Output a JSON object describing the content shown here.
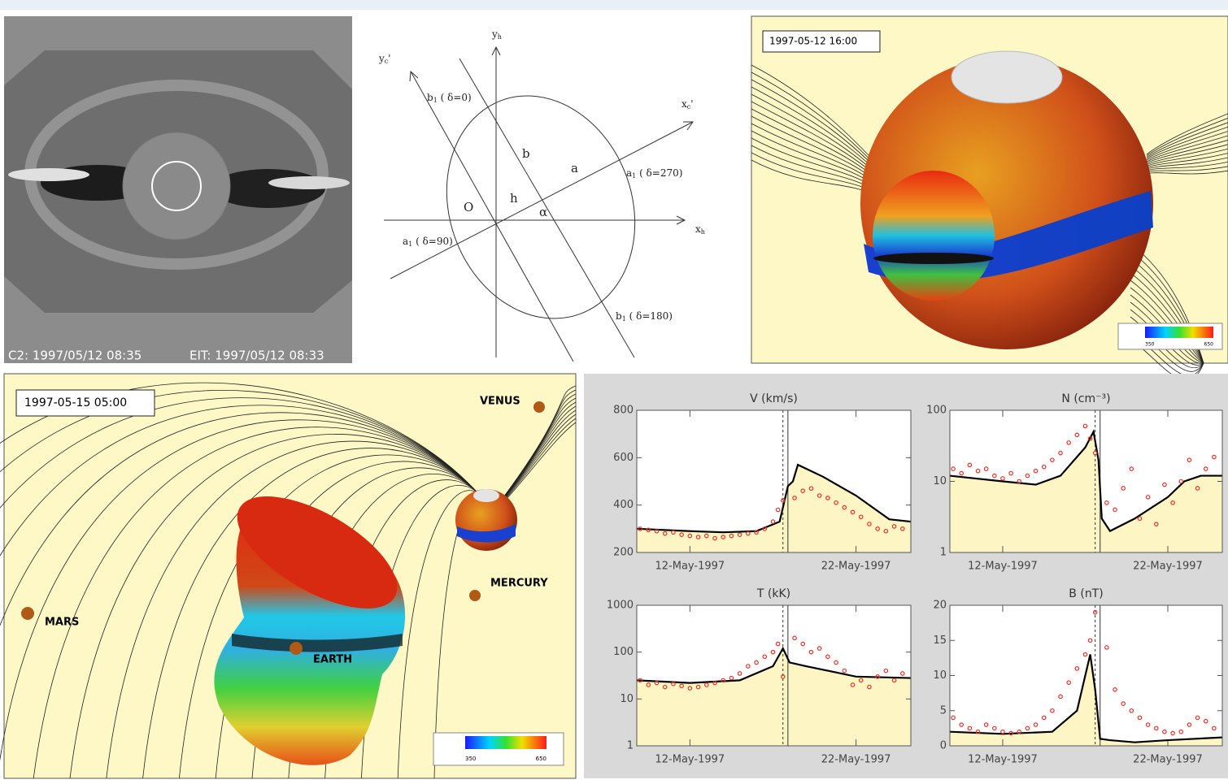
{
  "coronagraph": {
    "c2_label": "C2: 1997/05/12 08:35",
    "eit_label": "EIT: 1997/05/12 08:33"
  },
  "diagram": {
    "y_h": {
      "main": "y",
      "sub": "h",
      "rest": ""
    },
    "y_c": {
      "main": "y",
      "sub": "c",
      "rest": "'"
    },
    "x_c": {
      "main": "x",
      "sub": "c",
      "rest": "'"
    },
    "x_h": {
      "main": "x",
      "sub": "h",
      "rest": ""
    },
    "b1_0": {
      "main": "b",
      "sub": "1",
      "rest": " ( δ=0)"
    },
    "a1_270": {
      "main": "a",
      "sub": "1",
      "rest": " ( δ=270)"
    },
    "a1_90": {
      "main": "a",
      "sub": "1",
      "rest": " ( δ=90)"
    },
    "b1_180": {
      "main": "b",
      "sub": "1",
      "rest": " ( δ=180)"
    },
    "a": "a",
    "b": "b",
    "h": "h",
    "O": "O",
    "alpha": "α"
  },
  "sun_model": {
    "timestamp": "1997-05-12 16:00",
    "colorbar": {
      "min": 350,
      "max": 650
    }
  },
  "heliosphere": {
    "timestamp": "1997-05-15 05:00",
    "venus": "VENUS",
    "mercury": "MERCURY",
    "mars": "MARS",
    "earth": "EARTH",
    "colorbar": {
      "min": 350,
      "max": 650
    }
  },
  "chart_data": [
    {
      "type": "line",
      "title": "V (km/s)",
      "xlim": [
        8.8,
        25.3
      ],
      "xticks": [
        {
          "value": 12,
          "label": "12-May-1997"
        },
        {
          "value": 22,
          "label": "22-May-1997"
        }
      ],
      "ylim": [
        200,
        800
      ],
      "yticks": [
        200,
        400,
        600,
        800
      ],
      "vlines": [
        17.6,
        17.9
      ],
      "series": [
        {
          "type": "line",
          "color": "#000000",
          "x": [
            8.8,
            12,
            14,
            16,
            17.4,
            17.9,
            18.2,
            18.5,
            20,
            22,
            24,
            25.3
          ],
          "values": [
            300,
            290,
            285,
            290,
            330,
            480,
            500,
            570,
            520,
            440,
            340,
            330
          ]
        },
        {
          "type": "scatter",
          "color": "#e8302a",
          "x": [
            9,
            9.5,
            10,
            10.5,
            11,
            11.5,
            12,
            12.5,
            13,
            13.5,
            14,
            14.5,
            15,
            15.5,
            16,
            16.5,
            17,
            17.3,
            17.6,
            18.3,
            18.8,
            19.3,
            19.8,
            20.3,
            20.8,
            21.3,
            21.8,
            22.3,
            22.8,
            23.3,
            23.8,
            24.3,
            24.8
          ],
          "values": [
            300,
            295,
            290,
            280,
            285,
            275,
            270,
            265,
            270,
            260,
            265,
            270,
            275,
            280,
            285,
            300,
            330,
            380,
            420,
            430,
            460,
            470,
            440,
            430,
            410,
            390,
            370,
            350,
            320,
            300,
            290,
            310,
            300
          ]
        }
      ]
    },
    {
      "type": "line",
      "title": "N (cm⁻³)",
      "yscale": "log",
      "xlim": [
        8.8,
        25.3
      ],
      "xticks": [
        {
          "value": 12,
          "label": "12-May-1997"
        },
        {
          "value": 22,
          "label": "22-May-1997"
        }
      ],
      "ylim": [
        1,
        100
      ],
      "yticks": [
        1,
        10,
        100
      ],
      "vlines": [
        17.6,
        17.9
      ],
      "series": [
        {
          "type": "line",
          "color": "#000000",
          "x": [
            8.8,
            12,
            14,
            15.5,
            17,
            17.5,
            17.8,
            18,
            18.5,
            20,
            22,
            23,
            24,
            25.3
          ],
          "values": [
            12,
            10,
            9,
            12,
            30,
            50,
            20,
            3,
            2,
            3,
            6,
            10,
            12,
            12
          ]
        },
        {
          "type": "scatter",
          "color": "#e8302a",
          "x": [
            9,
            9.5,
            10,
            10.5,
            11,
            11.5,
            12,
            12.5,
            13,
            13.5,
            14,
            14.5,
            15,
            15.5,
            16,
            16.5,
            17,
            17.3,
            17.6,
            18.3,
            18.8,
            19.3,
            19.8,
            20.3,
            20.8,
            21.3,
            21.8,
            22.3,
            22.8,
            23.3,
            23.8,
            24.3,
            24.8
          ],
          "values": [
            15,
            13,
            17,
            14,
            15,
            12,
            11,
            13,
            10,
            12,
            14,
            16,
            20,
            25,
            35,
            45,
            60,
            40,
            25,
            5,
            4,
            8,
            15,
            3,
            6,
            2.5,
            9,
            5,
            10,
            20,
            8,
            15,
            22
          ]
        }
      ]
    },
    {
      "type": "line",
      "title": "T (kK)",
      "yscale": "log",
      "xlim": [
        8.8,
        25.3
      ],
      "xticks": [
        {
          "value": 12,
          "label": "12-May-1997"
        },
        {
          "value": 22,
          "label": "22-May-1997"
        }
      ],
      "ylim": [
        1,
        1000
      ],
      "yticks": [
        1,
        10,
        100,
        1000
      ],
      "vlines": [
        17.6,
        17.9
      ],
      "series": [
        {
          "type": "line",
          "color": "#000000",
          "x": [
            8.8,
            12,
            15,
            17,
            17.6,
            18,
            19,
            22,
            25.3
          ],
          "values": [
            25,
            22,
            25,
            50,
            120,
            60,
            50,
            30,
            28
          ]
        },
        {
          "type": "scatter",
          "color": "#e8302a",
          "x": [
            9,
            9.5,
            10,
            10.5,
            11,
            11.5,
            12,
            12.5,
            13,
            13.5,
            14,
            14.5,
            15,
            15.5,
            16,
            16.5,
            17,
            17.3,
            17.6,
            18.3,
            18.8,
            19.3,
            19.8,
            20.3,
            20.8,
            21.3,
            21.8,
            22.3,
            22.8,
            23.3,
            23.8,
            24.3,
            24.8
          ],
          "values": [
            25,
            20,
            22,
            18,
            21,
            19,
            17,
            18,
            20,
            22,
            25,
            28,
            35,
            50,
            60,
            80,
            100,
            150,
            30,
            200,
            150,
            100,
            120,
            80,
            60,
            40,
            20,
            25,
            18,
            30,
            40,
            25,
            35
          ]
        }
      ]
    },
    {
      "type": "line",
      "title": "B (nT)",
      "xlim": [
        8.8,
        25.3
      ],
      "xticks": [
        {
          "value": 12,
          "label": "12-May-1997"
        },
        {
          "value": 22,
          "label": "22-May-1997"
        }
      ],
      "ylim": [
        0,
        20
      ],
      "yticks": [
        0,
        5,
        10,
        15,
        20
      ],
      "vlines": [
        17.6,
        17.9
      ],
      "series": [
        {
          "type": "line",
          "color": "#000000",
          "x": [
            8.8,
            12,
            15,
            16.5,
            17.3,
            17.6,
            17.9,
            18.5,
            20,
            22,
            25.3
          ],
          "values": [
            2,
            1.7,
            2,
            5,
            13,
            8,
            1,
            0.8,
            0.5,
            0.8,
            1.2
          ]
        },
        {
          "type": "scatter",
          "color": "#e8302a",
          "x": [
            9,
            9.5,
            10,
            10.5,
            11,
            11.5,
            12,
            12.5,
            13,
            13.5,
            14,
            14.5,
            15,
            15.5,
            16,
            16.5,
            17,
            17.3,
            17.6,
            18.3,
            18.8,
            19.3,
            19.8,
            20.3,
            20.8,
            21.3,
            21.8,
            22.3,
            22.8,
            23.3,
            23.8,
            24.3,
            24.8
          ],
          "values": [
            4,
            3,
            2.5,
            2,
            3,
            2.5,
            2,
            1.8,
            2,
            2.5,
            3,
            4,
            5,
            7,
            9,
            11,
            13,
            15,
            19,
            14,
            8,
            6,
            5,
            4,
            3,
            2.5,
            2,
            1.8,
            2,
            3,
            4,
            3.5,
            2.5
          ]
        }
      ]
    }
  ]
}
